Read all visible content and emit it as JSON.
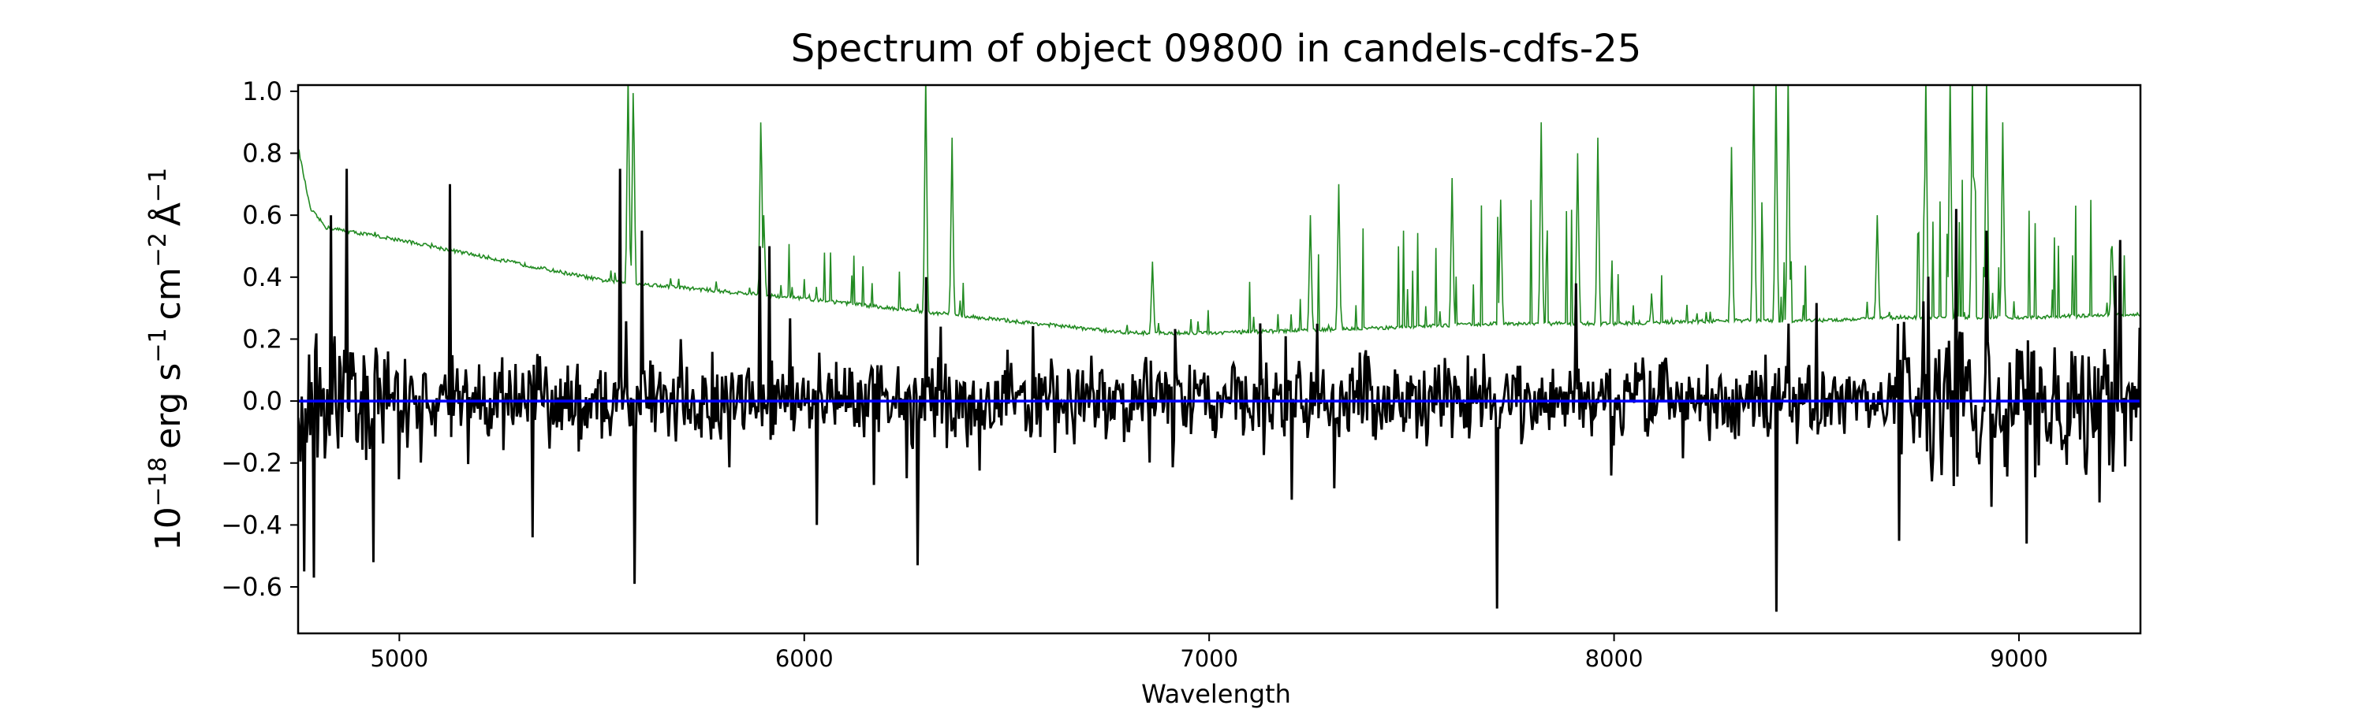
{
  "chart_data": {
    "type": "line",
    "title": "Spectrum of object 09800 in candels-cdfs-25",
    "xlabel": "Wavelength",
    "ylabel_parts": {
      "base": "10",
      "exp": "−18",
      "unit1": "erg s",
      "exp1": "−1",
      "unit2": "cm",
      "exp2": "−2",
      "unit3": "Å",
      "exp3": "−1"
    },
    "xlim": [
      4750,
      9300
    ],
    "ylim": [
      -0.75,
      1.02
    ],
    "xticks": [
      5000,
      6000,
      7000,
      8000,
      9000
    ],
    "yticks": [
      1.0,
      0.8,
      0.6,
      0.4,
      0.2,
      0.0,
      -0.2,
      -0.4,
      -0.6
    ],
    "ytick_labels": [
      "1.0",
      "0.8",
      "0.6",
      "0.4",
      "0.2",
      "0.0",
      "−0.2",
      "−0.4",
      "−0.6"
    ],
    "grid": false,
    "series": [
      {
        "color": "#228b22",
        "role": "noise",
        "baseline": [
          [
            4750,
            0.82
          ],
          [
            4780,
            0.62
          ],
          [
            4820,
            0.56
          ],
          [
            5000,
            0.52
          ],
          [
            5500,
            0.39
          ],
          [
            6000,
            0.33
          ],
          [
            6500,
            0.26
          ],
          [
            6800,
            0.22
          ],
          [
            7000,
            0.22
          ],
          [
            7300,
            0.23
          ],
          [
            7500,
            0.24
          ],
          [
            7700,
            0.25
          ],
          [
            8000,
            0.25
          ],
          [
            8300,
            0.26
          ],
          [
            8500,
            0.26
          ],
          [
            8700,
            0.27
          ],
          [
            9000,
            0.27
          ],
          [
            9300,
            0.28
          ]
        ],
        "spikes": [
          [
            5565,
            1.05
          ],
          [
            5578,
            1.05
          ],
          [
            5893,
            0.95
          ],
          [
            5900,
            0.6
          ],
          [
            6300,
            1.05
          ],
          [
            6365,
            0.85
          ],
          [
            6860,
            0.45
          ],
          [
            7250,
            0.6
          ],
          [
            7320,
            0.7
          ],
          [
            7600,
            0.72
          ],
          [
            7720,
            0.65
          ],
          [
            7820,
            0.9
          ],
          [
            7910,
            0.8
          ],
          [
            7960,
            0.85
          ],
          [
            8290,
            0.82
          ],
          [
            8345,
            1.05
          ],
          [
            8400,
            1.05
          ],
          [
            8430,
            1.05
          ],
          [
            8650,
            0.6
          ],
          [
            8770,
            1.05
          ],
          [
            8830,
            1.05
          ],
          [
            8885,
            1.05
          ],
          [
            8920,
            1.05
          ],
          [
            8960,
            0.9
          ],
          [
            9230,
            0.5
          ]
        ]
      },
      {
        "color": "#000000",
        "role": "flux",
        "extremes": [
          [
            4765,
            -0.55
          ],
          [
            4790,
            -0.57
          ],
          [
            4830,
            0.6
          ],
          [
            4870,
            0.75
          ],
          [
            4935,
            -0.52
          ],
          [
            5125,
            0.7
          ],
          [
            5330,
            -0.44
          ],
          [
            5545,
            0.75
          ],
          [
            5580,
            -0.59
          ],
          [
            5600,
            0.55
          ],
          [
            5890,
            0.5
          ],
          [
            5915,
            0.5
          ],
          [
            6030,
            -0.4
          ],
          [
            6280,
            -0.53
          ],
          [
            6300,
            0.4
          ],
          [
            7710,
            -0.67
          ],
          [
            7905,
            0.38
          ],
          [
            8400,
            -0.68
          ],
          [
            8430,
            0.25
          ],
          [
            8845,
            0.62
          ],
          [
            8920,
            0.55
          ],
          [
            9020,
            -0.46
          ],
          [
            9250,
            0.52
          ]
        ]
      },
      {
        "color": "#0000ff",
        "role": "zero",
        "y": 0.0
      }
    ]
  }
}
